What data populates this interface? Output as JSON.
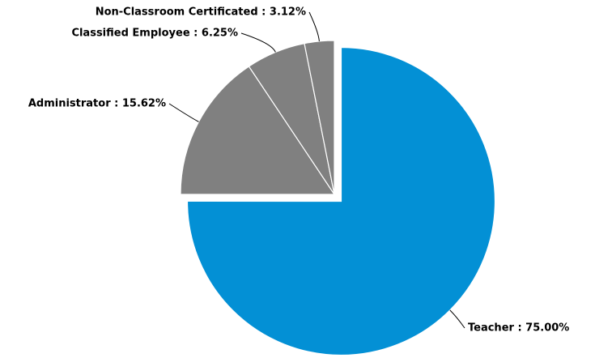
{
  "chart_data": {
    "type": "pie",
    "labels": [
      "Teacher : 75.00%",
      "Administrator : 15.62%",
      "Classified Employee : 6.25%",
      "Non-Classroom Certificated : 3.12%"
    ],
    "values": [
      75.0,
      15.62,
      6.25,
      3.12
    ],
    "colors": [
      "#0390d5",
      "#808080",
      "#808080",
      "#808080"
    ]
  }
}
